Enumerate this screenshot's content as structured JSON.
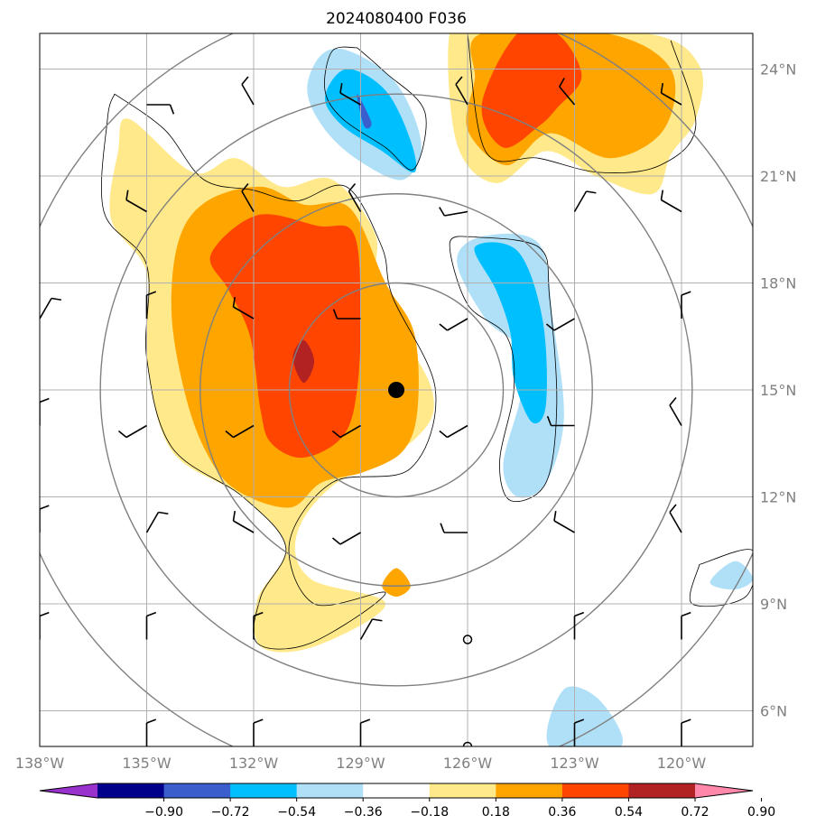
{
  "chart_data": {
    "type": "contour-map",
    "title": "2024080400 F036",
    "x_ticks": [
      {
        "label": "138°W",
        "lon": -138
      },
      {
        "label": "135°W",
        "lon": -135
      },
      {
        "label": "132°W",
        "lon": -132
      },
      {
        "label": "129°W",
        "lon": -129
      },
      {
        "label": "126°W",
        "lon": -126
      },
      {
        "label": "123°W",
        "lon": -123
      },
      {
        "label": "120°W",
        "lon": -120
      }
    ],
    "y_ticks": [
      {
        "label": "24°N",
        "lat": 24
      },
      {
        "label": "21°N",
        "lat": 21
      },
      {
        "label": "18°N",
        "lat": 18
      },
      {
        "label": "15°N",
        "lat": 15
      },
      {
        "label": "12°N",
        "lat": 12
      },
      {
        "label": "9°N",
        "lat": 9
      },
      {
        "label": "6°N",
        "lat": 6
      }
    ],
    "xlim": [
      -138,
      -118
    ],
    "ylim": [
      5,
      25
    ],
    "center": {
      "lon": -128,
      "lat": 15
    },
    "range_rings_deg": [
      3,
      5.5,
      8.3,
      11
    ],
    "colorbar": {
      "levels": [
        -0.9,
        -0.72,
        -0.54,
        -0.36,
        -0.18,
        0.18,
        0.36,
        0.54,
        0.72,
        0.9
      ],
      "level_labels": [
        "−0.90",
        "−0.72",
        "−0.54",
        "−0.36",
        "−0.18",
        "0.18",
        "0.36",
        "0.54",
        "0.72",
        "0.90"
      ],
      "colors": [
        "#9932cc",
        "#00008b",
        "#3a5fcd",
        "#00bfff",
        "#b0e0f8",
        "#ffffff",
        "#ffe98a",
        "#ffa500",
        "#ff4500",
        "#b22222",
        "#ff88aa"
      ],
      "extend": "both"
    },
    "regions": [
      {
        "name": "positive-west-blob",
        "level": 0.18,
        "pts": [
          [
            -135.5,
            22.6
          ],
          [
            -133.7,
            21.1
          ],
          [
            -132.5,
            21.5
          ],
          [
            -131.2,
            20.7
          ],
          [
            -129.8,
            20.9
          ],
          [
            -128.6,
            19.4
          ],
          [
            -128.5,
            17.7
          ],
          [
            -127.0,
            15.0
          ],
          [
            -127.5,
            13.6
          ],
          [
            -129.8,
            12.3
          ],
          [
            -130.8,
            10.9
          ],
          [
            -130.4,
            9.7
          ],
          [
            -128.3,
            9.0
          ],
          [
            -130.3,
            7.8
          ],
          [
            -131.8,
            7.8
          ],
          [
            -131.9,
            9.1
          ],
          [
            -131.1,
            10.6
          ],
          [
            -132.3,
            12.0
          ],
          [
            -134.3,
            13.3
          ],
          [
            -135.0,
            15.9
          ],
          [
            -135.0,
            18.3
          ],
          [
            -136.0,
            19.8
          ],
          [
            -135.8,
            21.7
          ]
        ]
      },
      {
        "name": "positive-west-blob",
        "level": 0.36,
        "pts": [
          [
            -134.1,
            19.2
          ],
          [
            -133.3,
            20.3
          ],
          [
            -131.8,
            20.7
          ],
          [
            -130.6,
            20.2
          ],
          [
            -129.3,
            20.1
          ],
          [
            -128.3,
            18.0
          ],
          [
            -127.5,
            16.6
          ],
          [
            -127.4,
            14.5
          ],
          [
            -127.8,
            13.3
          ],
          [
            -128.9,
            12.7
          ],
          [
            -130.1,
            12.4
          ],
          [
            -131.0,
            11.7
          ],
          [
            -132.5,
            12.2
          ],
          [
            -133.3,
            13.2
          ],
          [
            -133.9,
            14.8
          ],
          [
            -134.3,
            17.1
          ]
        ]
      },
      {
        "name": "positive-west-blob",
        "level": 0.54,
        "pts": [
          [
            -133.2,
            18.8
          ],
          [
            -131.9,
            19.9
          ],
          [
            -130.2,
            19.6
          ],
          [
            -129.2,
            19.4
          ],
          [
            -129.0,
            17.3
          ],
          [
            -129.1,
            15.0
          ],
          [
            -129.5,
            13.7
          ],
          [
            -130.6,
            13.1
          ],
          [
            -131.5,
            13.5
          ],
          [
            -131.8,
            14.4
          ],
          [
            -132.1,
            16.5
          ],
          [
            -132.7,
            17.8
          ]
        ]
      },
      {
        "name": "positive-west-blob",
        "level": 0.72,
        "pts": [
          [
            -130.6,
            16.4
          ],
          [
            -130.3,
            15.8
          ],
          [
            -130.6,
            15.2
          ],
          [
            -130.9,
            15.9
          ]
        ]
      },
      {
        "name": "positive-northeast-blob",
        "level": 0.18,
        "pts": [
          [
            -125.6,
            25.0
          ],
          [
            -121.0,
            25.0
          ],
          [
            -119.5,
            24.1
          ],
          [
            -119.6,
            22.6
          ],
          [
            -120.3,
            21.6
          ],
          [
            -120.8,
            20.5
          ],
          [
            -122.4,
            21.0
          ],
          [
            -123.8,
            21.7
          ],
          [
            -125.2,
            20.8
          ],
          [
            -126.3,
            21.9
          ],
          [
            -126.5,
            25.0
          ]
        ]
      },
      {
        "name": "positive-northeast-blob",
        "level": 0.36,
        "pts": [
          [
            -125.6,
            25.0
          ],
          [
            -122.1,
            25.0
          ],
          [
            -120.3,
            24.0
          ],
          [
            -120.5,
            22.3
          ],
          [
            -122.0,
            21.5
          ],
          [
            -123.7,
            22.2
          ],
          [
            -124.9,
            21.3
          ],
          [
            -126.0,
            22.3
          ],
          [
            -125.8,
            23.7
          ]
        ]
      },
      {
        "name": "positive-northeast-blob",
        "level": 0.54,
        "pts": [
          [
            -124.6,
            25.0
          ],
          [
            -123.5,
            25.0
          ],
          [
            -122.8,
            23.8
          ],
          [
            -123.5,
            22.9
          ],
          [
            -124.0,
            22.4
          ],
          [
            -125.0,
            21.8
          ],
          [
            -125.6,
            23.0
          ]
        ]
      },
      {
        "name": "positive-center-sliver",
        "level": 0.36,
        "pts": [
          [
            -128.0,
            10.0
          ],
          [
            -127.6,
            9.5
          ],
          [
            -128.0,
            9.2
          ],
          [
            -128.4,
            9.5
          ]
        ]
      },
      {
        "name": "negative-north-blob",
        "level": -0.18,
        "pts": [
          [
            -129.3,
            24.5
          ],
          [
            -130.1,
            24.4
          ],
          [
            -130.5,
            23.4
          ],
          [
            -130.0,
            22.3
          ],
          [
            -129.0,
            21.4
          ],
          [
            -127.8,
            20.9
          ],
          [
            -127.3,
            21.9
          ],
          [
            -128.0,
            23.6
          ]
        ]
      },
      {
        "name": "negative-north-blob",
        "level": -0.36,
        "pts": [
          [
            -129.4,
            24.0
          ],
          [
            -130.0,
            23.2
          ],
          [
            -129.5,
            22.4
          ],
          [
            -128.4,
            21.7
          ],
          [
            -127.5,
            21.1
          ],
          [
            -127.6,
            22.0
          ],
          [
            -128.3,
            23.4
          ]
        ]
      },
      {
        "name": "negative-north-blob",
        "level": -0.54,
        "pts": [
          [
            -129.1,
            23.3
          ],
          [
            -128.7,
            22.5
          ],
          [
            -128.9,
            22.4
          ]
        ]
      },
      {
        "name": "negative-east-arc",
        "level": -0.18,
        "pts": [
          [
            -125.6,
            19.3
          ],
          [
            -124.0,
            19.1
          ],
          [
            -123.6,
            16.9
          ],
          [
            -123.3,
            14.2
          ],
          [
            -123.8,
            12.4
          ],
          [
            -124.6,
            12.0
          ],
          [
            -125.0,
            12.9
          ],
          [
            -124.5,
            14.9
          ],
          [
            -124.6,
            16.2
          ],
          [
            -125.5,
            17.0
          ],
          [
            -126.3,
            18.6
          ]
        ]
      },
      {
        "name": "negative-east-arc",
        "level": -0.36,
        "pts": [
          [
            -125.8,
            19.0
          ],
          [
            -124.6,
            18.9
          ],
          [
            -123.9,
            17.0
          ],
          [
            -123.8,
            14.6
          ],
          [
            -124.2,
            14.1
          ],
          [
            -124.7,
            15.3
          ],
          [
            -124.8,
            16.6
          ],
          [
            -125.2,
            17.8
          ]
        ]
      },
      {
        "name": "negative-south-blob",
        "level": -0.18,
        "pts": [
          [
            -123.3,
            6.6
          ],
          [
            -122.3,
            6.3
          ],
          [
            -121.7,
            5.0
          ],
          [
            -123.7,
            5.0
          ]
        ]
      },
      {
        "name": "negative-east-edge",
        "level": -0.18,
        "pts": [
          [
            -118.5,
            10.2
          ],
          [
            -118.0,
            9.7
          ],
          [
            -118.5,
            9.4
          ],
          [
            -119.2,
            9.6
          ]
        ]
      }
    ],
    "outlines": [
      {
        "name": "zero-contour",
        "pts": [
          [
            -135.9,
            23.3
          ],
          [
            -134.5,
            22.3
          ],
          [
            -133.4,
            20.9
          ],
          [
            -132.0,
            20.6
          ],
          [
            -130.8,
            20.3
          ],
          [
            -129.4,
            20.7
          ],
          [
            -128.4,
            19.0
          ],
          [
            -128.1,
            17.6
          ],
          [
            -126.9,
            15.0
          ],
          [
            -127.6,
            12.8
          ],
          [
            -129.8,
            12.4
          ],
          [
            -131.0,
            10.7
          ],
          [
            -130.3,
            9.0
          ],
          [
            -128.3,
            9.3
          ],
          [
            -130.4,
            7.9
          ],
          [
            -131.9,
            7.9
          ],
          [
            -131.8,
            9.2
          ],
          [
            -131.1,
            10.6
          ],
          [
            -132.3,
            12.0
          ],
          [
            -134.3,
            13.4
          ],
          [
            -135.0,
            15.9
          ],
          [
            -135.0,
            18.5
          ],
          [
            -136.2,
            20.0
          ],
          [
            -136.1,
            22.6
          ],
          [
            -135.9,
            23.3
          ]
        ]
      },
      {
        "name": "zero-contour",
        "pts": [
          [
            -126.0,
            25.0
          ],
          [
            -125.5,
            21.7
          ],
          [
            -124.0,
            21.5
          ],
          [
            -122.3,
            21.1
          ],
          [
            -120.6,
            21.3
          ],
          [
            -119.6,
            22.4
          ],
          [
            -120.3,
            24.8
          ]
        ]
      },
      {
        "name": "zero-contour",
        "pts": [
          [
            -129.1,
            24.6
          ],
          [
            -129.8,
            24.5
          ],
          [
            -130.0,
            23.4
          ],
          [
            -129.5,
            22.6
          ],
          [
            -128.3,
            21.8
          ],
          [
            -127.5,
            21.2
          ],
          [
            -127.2,
            22.8
          ],
          [
            -128.3,
            23.9
          ],
          [
            -129.1,
            24.6
          ]
        ]
      },
      {
        "name": "zero-contour",
        "pts": [
          [
            -125.9,
            19.3
          ],
          [
            -124.0,
            19.0
          ],
          [
            -123.7,
            17.6
          ],
          [
            -123.5,
            14.6
          ],
          [
            -123.8,
            12.4
          ],
          [
            -124.8,
            11.9
          ],
          [
            -125.1,
            13.0
          ],
          [
            -124.7,
            15.0
          ],
          [
            -124.9,
            16.5
          ],
          [
            -126.0,
            17.4
          ],
          [
            -126.5,
            19.1
          ],
          [
            -125.9,
            19.3
          ]
        ]
      },
      {
        "name": "zero-contour",
        "pts": [
          [
            -119.5,
            10.1
          ],
          [
            -118.0,
            10.5
          ],
          [
            -118.2,
            9.2
          ],
          [
            -119.7,
            9.0
          ],
          [
            -119.5,
            10.1
          ]
        ]
      }
    ],
    "wind_barbs": {
      "lons": [
        -138,
        -135,
        -132,
        -129,
        -126,
        -123,
        -120
      ],
      "lats": [
        23,
        20,
        17,
        14,
        11,
        8,
        5
      ],
      "directions": [
        [
          300,
          90,
          330,
          300,
          330,
          320,
          300
        ],
        [
          300,
          300,
          330,
          330,
          260,
          30,
          300
        ],
        [
          30,
          0,
          300,
          270,
          240,
          240,
          0
        ],
        [
          0,
          240,
          240,
          240,
          240,
          270,
          330
        ],
        [
          0,
          30,
          300,
          240,
          270,
          300,
          330
        ],
        [
          0,
          0,
          0,
          30,
          "calm",
          0,
          0
        ],
        [
          300,
          0,
          0,
          0,
          "calm",
          0,
          0
        ]
      ]
    },
    "center_marker": {
      "lon": -128,
      "lat": 15
    }
  }
}
